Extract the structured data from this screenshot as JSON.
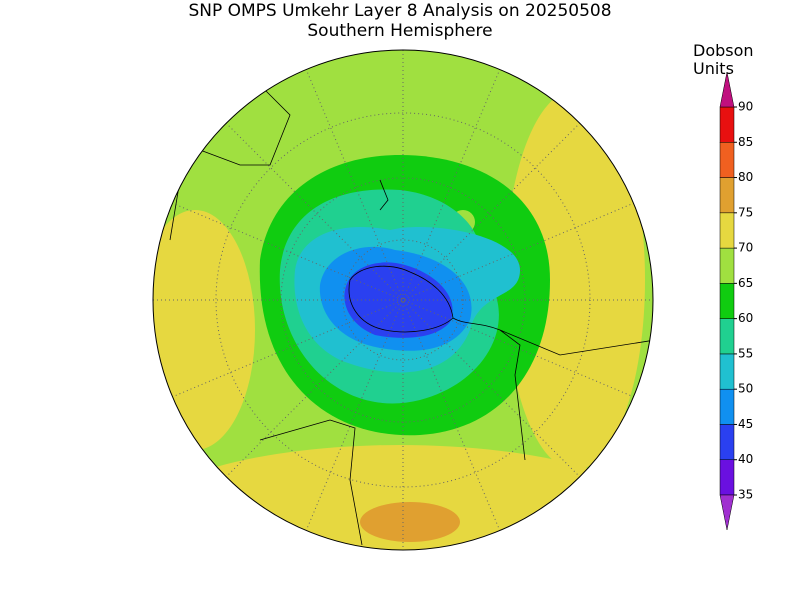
{
  "title": "SNP OMPS Umkehr Layer 8 Analysis on 20250508",
  "subtitle": "Southern Hemisphere",
  "colorbar": {
    "label_lines": [
      "Dobson",
      "Units"
    ],
    "ticks": [
      35,
      40,
      45,
      50,
      55,
      60,
      65,
      70,
      75,
      80,
      85,
      90
    ],
    "colors": [
      "#a030d0",
      "#6a10e0",
      "#2a40f0",
      "#1090f0",
      "#20c0d0",
      "#20d090",
      "#10cc10",
      "#a0e040",
      "#e6d840",
      "#e0a030",
      "#f06020",
      "#e81010",
      "#c0107f"
    ]
  }
}
